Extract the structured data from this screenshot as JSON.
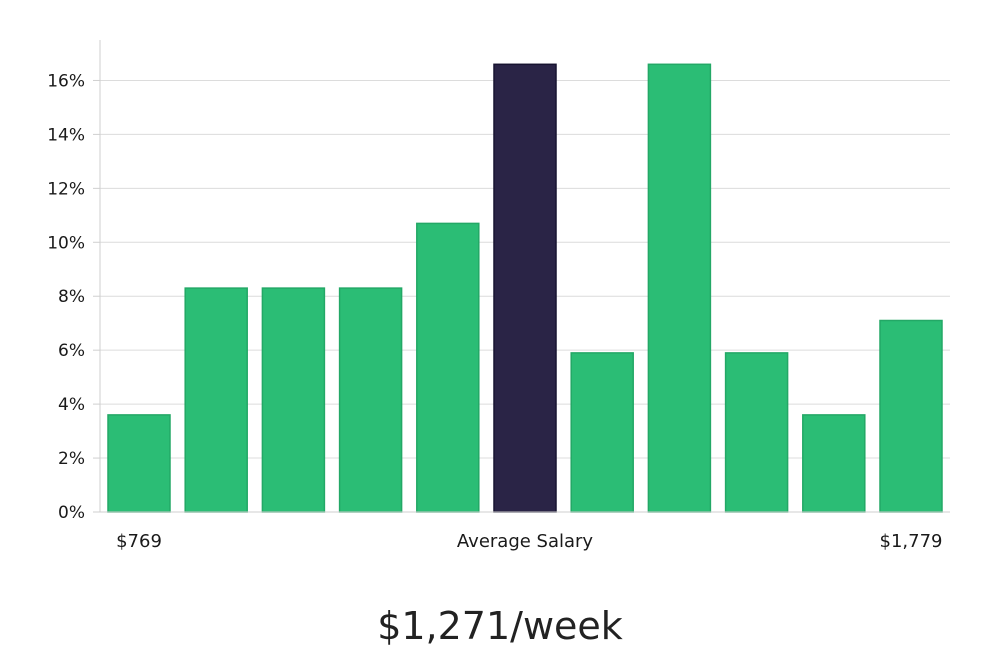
{
  "chart_data": {
    "type": "bar",
    "values": [
      3.6,
      8.3,
      8.3,
      8.3,
      10.7,
      16.6,
      5.9,
      16.6,
      5.9,
      3.6,
      7.1
    ],
    "highlight_index": 5,
    "x_tick_labels": {
      "left": "$769",
      "center": "Average Salary",
      "right": "$1,779"
    },
    "yticks": [
      "0%",
      "2%",
      "4%",
      "6%",
      "8%",
      "10%",
      "12%",
      "14%",
      "16%"
    ],
    "ylim": [
      0,
      17.5
    ],
    "y_unit": "%",
    "grid": true,
    "colors": {
      "bar": "#2bbd75",
      "bar_edge": "#23a866",
      "highlight": "#2a2446",
      "highlight_edge": "#171330",
      "grid": "#dcdcdc",
      "axis": "#cfcfcf"
    }
  },
  "summary": {
    "average_salary": "$1,271/week"
  }
}
